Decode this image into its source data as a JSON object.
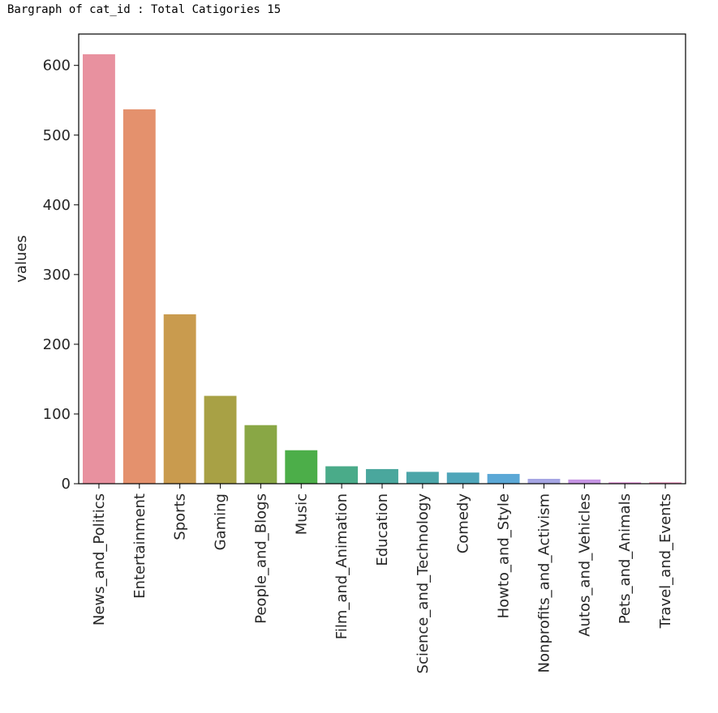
{
  "output": {
    "text": "Bargraph of cat_id : Total Catigories 15"
  },
  "chart_data": {
    "type": "bar",
    "title": "",
    "xlabel": "",
    "ylabel": "values",
    "ylim": [
      0,
      645
    ],
    "yticks": [
      0,
      100,
      200,
      300,
      400,
      500,
      600
    ],
    "grid": false,
    "categories": [
      "News_and_Politics",
      "Entertainment",
      "Sports",
      "Gaming",
      "People_and_Blogs",
      "Music",
      "Film_and_Animation",
      "Education",
      "Science_and_Technology",
      "Comedy",
      "Howto_and_Style",
      "Nonprofits_and_Activism",
      "Autos_and_Vehicles",
      "Pets_and_Animals",
      "Travel_and_Events"
    ],
    "values": [
      616,
      537,
      243,
      126,
      84,
      48,
      25,
      21,
      17,
      16,
      14,
      7,
      6,
      2,
      2
    ],
    "colors": [
      "#e8919f",
      "#e4916d",
      "#c99b4e",
      "#a8a145",
      "#89a745",
      "#4cae49",
      "#4aab89",
      "#4aa79d",
      "#4ba5a8",
      "#4ea5b9",
      "#5ba8d6",
      "#a5a5e3",
      "#c594e3",
      "#e18fd7",
      "#e691bb"
    ]
  }
}
